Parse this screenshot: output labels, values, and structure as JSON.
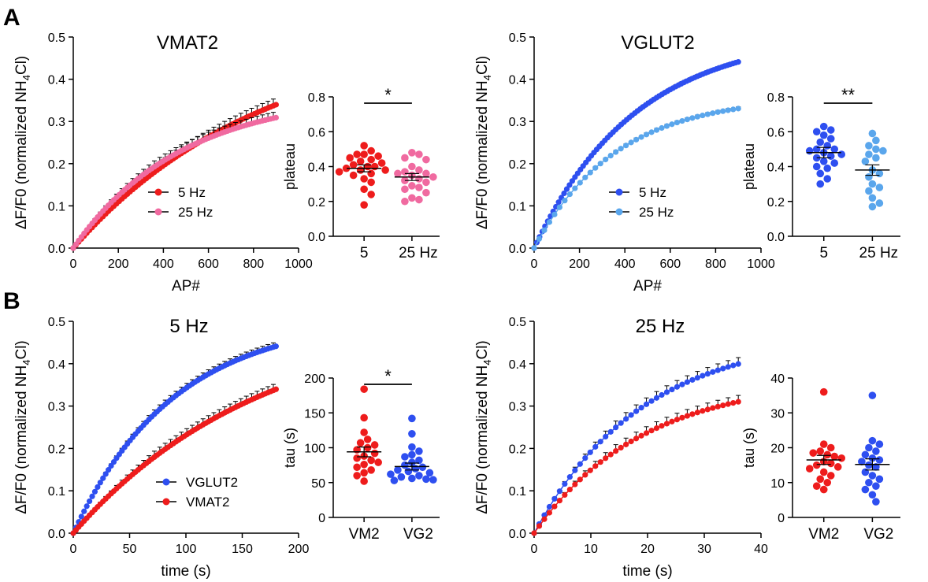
{
  "panel_labels": [
    "A",
    "B"
  ],
  "colors": {
    "red": "#ee1c1c",
    "pink": "#f06aa0",
    "blue": "#2e4ff0",
    "lightblue": "#5aa6ec",
    "axis": "#000000"
  },
  "chart_data": [
    {
      "id": "vmat2-curve",
      "type": "line",
      "title": "VMAT2",
      "xlabel": "AP#",
      "ylabel": "ΔF/F0 (normalized NH4Cl)",
      "xlim": [
        0,
        1000
      ],
      "ylim": [
        0,
        0.5
      ],
      "xticks": [
        "0",
        "200",
        "400",
        "600",
        "800",
        "1000"
      ],
      "yticks": [
        "0.0",
        "0.1",
        "0.2",
        "0.3",
        "0.4",
        "0.5"
      ],
      "legend": "center",
      "series": [
        {
          "name": "5 Hz",
          "color": "#ee1c1c",
          "amp": 0.52,
          "tau": 850,
          "x_end": 900,
          "n": 75,
          "err": 0.016
        },
        {
          "name": "25 Hz",
          "color": "#f06aa0",
          "amp": 0.365,
          "tau": 480,
          "x_end": 900,
          "n": 75,
          "err": 0.014
        }
      ]
    },
    {
      "id": "vmat2-plateau",
      "type": "scatter",
      "ylabel": "plateau",
      "ylim": [
        0,
        0.8
      ],
      "yticks": [
        "0.0",
        "0.2",
        "0.4",
        "0.6",
        "0.8"
      ],
      "categories": [
        "5",
        "25 Hz"
      ],
      "significance": "*",
      "groups": [
        {
          "name": "5",
          "color": "#ee1c1c",
          "mean": 0.39,
          "sem": 0.02,
          "values": [
            0.52,
            0.49,
            0.47,
            0.47,
            0.46,
            0.45,
            0.44,
            0.43,
            0.42,
            0.41,
            0.4,
            0.4,
            0.39,
            0.38,
            0.38,
            0.37,
            0.36,
            0.35,
            0.33,
            0.31,
            0.27,
            0.24,
            0.18
          ]
        },
        {
          "name": "25 Hz",
          "color": "#f06aa0",
          "mean": 0.34,
          "sem": 0.02,
          "values": [
            0.48,
            0.47,
            0.45,
            0.44,
            0.4,
            0.38,
            0.37,
            0.36,
            0.36,
            0.35,
            0.34,
            0.33,
            0.32,
            0.31,
            0.29,
            0.28,
            0.27,
            0.25,
            0.22,
            0.21,
            0.2
          ]
        }
      ]
    },
    {
      "id": "vglut2-curve",
      "type": "line",
      "title": "VGLUT2",
      "xlabel": "AP#",
      "ylabel": "ΔF/F0 (normalized NH4Cl)",
      "xlim": [
        0,
        1000
      ],
      "ylim": [
        0,
        0.5
      ],
      "xticks": [
        "0",
        "200",
        "400",
        "600",
        "800",
        "1000"
      ],
      "yticks": [
        "0.0",
        "0.1",
        "0.2",
        "0.3",
        "0.4",
        "0.5"
      ],
      "legend": "center",
      "series": [
        {
          "name": "5 Hz",
          "color": "#2e4ff0",
          "amp": 0.51,
          "tau": 450,
          "x_end": 900,
          "n": 75,
          "err": 0.004
        },
        {
          "name": "25 Hz",
          "color": "#5aa6ec",
          "amp": 0.36,
          "tau": 360,
          "x_end": 900,
          "n": 40,
          "err": 0.004
        }
      ]
    },
    {
      "id": "vglut2-plateau",
      "type": "scatter",
      "ylabel": "plateau",
      "ylim": [
        0,
        0.8
      ],
      "yticks": [
        "0.0",
        "0.2",
        "0.4",
        "0.6",
        "0.8"
      ],
      "categories": [
        "5",
        "25 Hz"
      ],
      "significance": "**",
      "groups": [
        {
          "name": "5",
          "color": "#2e4ff0",
          "mean": 0.48,
          "sem": 0.03,
          "values": [
            0.63,
            0.61,
            0.6,
            0.58,
            0.56,
            0.54,
            0.52,
            0.5,
            0.5,
            0.49,
            0.48,
            0.47,
            0.46,
            0.45,
            0.43,
            0.42,
            0.4,
            0.39,
            0.36,
            0.33,
            0.3
          ]
        },
        {
          "name": "25 Hz",
          "color": "#5aa6ec",
          "mean": 0.38,
          "sem": 0.03,
          "values": [
            0.59,
            0.55,
            0.52,
            0.5,
            0.49,
            0.47,
            0.45,
            0.43,
            0.38,
            0.36,
            0.34,
            0.3,
            0.28,
            0.26,
            0.22,
            0.19,
            0.17
          ]
        }
      ]
    },
    {
      "id": "hz5-curve",
      "type": "line",
      "title": "5 Hz",
      "xlabel": "time (s)",
      "ylabel": "ΔF/F0 (normalized NH4Cl)",
      "xlim": [
        0,
        200
      ],
      "ylim": [
        0,
        0.5
      ],
      "xticks": [
        "0",
        "50",
        "100",
        "150",
        "200"
      ],
      "yticks": [
        "0.0",
        "0.1",
        "0.2",
        "0.3",
        "0.4",
        "0.5"
      ],
      "legend": "bottom-center",
      "series": [
        {
          "name": "VGLUT2",
          "color": "#2e4ff0",
          "amp": 0.51,
          "tau": 90,
          "x_end": 180,
          "n": 75,
          "err": 0.01
        },
        {
          "name": "VMAT2",
          "color": "#ee1c1c",
          "amp": 0.52,
          "tau": 170,
          "x_end": 180,
          "n": 75,
          "err": 0.014
        }
      ]
    },
    {
      "id": "hz5-tau",
      "type": "scatter",
      "ylabel": "tau (s)",
      "ylim": [
        0,
        200
      ],
      "yticks": [
        "0",
        "50",
        "100",
        "150",
        "200"
      ],
      "categories": [
        "VM2",
        "VG2"
      ],
      "significance": "*",
      "groups": [
        {
          "name": "VM2",
          "color": "#ee1c1c",
          "mean": 94,
          "sem": 7,
          "values": [
            184,
            143,
            122,
            112,
            107,
            104,
            100,
            97,
            92,
            88,
            85,
            82,
            79,
            76,
            72,
            68,
            64,
            60,
            52
          ]
        },
        {
          "name": "VG2",
          "color": "#2e4ff0",
          "mean": 73,
          "sem": 5,
          "values": [
            142,
            120,
            101,
            95,
            90,
            87,
            82,
            79,
            75,
            72,
            70,
            68,
            66,
            64,
            62,
            60,
            58,
            56,
            55,
            54,
            53
          ]
        }
      ]
    },
    {
      "id": "hz25-curve",
      "type": "line",
      "title": "25 Hz",
      "xlabel": "time (s)",
      "ylabel": "ΔF/F0 (normalized NH4Cl)",
      "xlim": [
        0,
        40
      ],
      "ylim": [
        0,
        0.5
      ],
      "xticks": [
        "0",
        "10",
        "20",
        "30",
        "40"
      ],
      "yticks": [
        "0.0",
        "0.1",
        "0.2",
        "0.3",
        "0.4",
        "0.5"
      ],
      "legend": "none",
      "series": [
        {
          "name": "VGLUT2",
          "color": "#2e4ff0",
          "amp": 0.47,
          "tau": 19,
          "x_end": 36,
          "n": 40,
          "err": 0.015
        },
        {
          "name": "VMAT2",
          "color": "#ee1c1c",
          "amp": 0.365,
          "tau": 19,
          "x_end": 36,
          "n": 40,
          "err": 0.015
        }
      ]
    },
    {
      "id": "hz25-tau",
      "type": "scatter",
      "ylabel": "tau (s)",
      "ylim": [
        0,
        40
      ],
      "yticks": [
        "0",
        "10",
        "20",
        "30",
        "40"
      ],
      "categories": [
        "VM2",
        "VG2"
      ],
      "significance": "",
      "groups": [
        {
          "name": "VM2",
          "color": "#ee1c1c",
          "mean": 16.5,
          "sem": 1.3,
          "values": [
            36,
            21,
            20,
            19,
            18.5,
            18,
            17.5,
            17,
            16,
            15.5,
            15,
            14.5,
            14,
            13,
            12,
            11,
            10,
            9,
            8
          ]
        },
        {
          "name": "VG2",
          "color": "#2e4ff0",
          "mean": 15.2,
          "sem": 1.6,
          "values": [
            35,
            22,
            21,
            20,
            19,
            18,
            17,
            16.5,
            16,
            15,
            14.5,
            13,
            12,
            11,
            10,
            9,
            8,
            6.5,
            4.5
          ]
        }
      ]
    }
  ]
}
